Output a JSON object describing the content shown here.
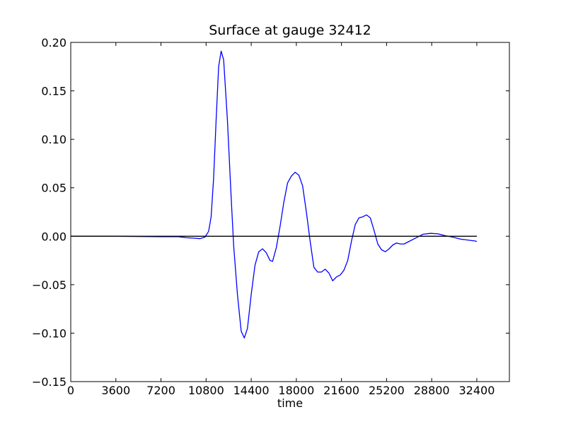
{
  "chart_data": {
    "type": "line",
    "title": "Surface at gauge 32412",
    "xlabel": "time",
    "ylabel": "",
    "xlim": [
      0,
      35000
    ],
    "ylim": [
      -0.15,
      0.2
    ],
    "xticks": [
      0,
      3600,
      7200,
      10800,
      14400,
      18000,
      21600,
      25200,
      28800,
      32400
    ],
    "yticks": [
      -0.15,
      -0.1,
      -0.05,
      0.0,
      0.05,
      0.1,
      0.15,
      0.2
    ],
    "ytick_labels": [
      "−0.15",
      "−0.10",
      "−0.05",
      "0.00",
      "0.05",
      "0.10",
      "0.15",
      "0.20"
    ],
    "grid": false,
    "series": [
      {
        "color": "#0000ff",
        "points": [
          [
            0,
            0.0
          ],
          [
            3600,
            0.0
          ],
          [
            7200,
            -0.0005
          ],
          [
            8600,
            -0.0005
          ],
          [
            9200,
            -0.0015
          ],
          [
            9800,
            -0.002
          ],
          [
            10300,
            -0.0025
          ],
          [
            10700,
            -0.001
          ],
          [
            11000,
            0.005
          ],
          [
            11200,
            0.02
          ],
          [
            11400,
            0.06
          ],
          [
            11600,
            0.12
          ],
          [
            11800,
            0.175
          ],
          [
            12000,
            0.191
          ],
          [
            12200,
            0.182
          ],
          [
            12500,
            0.12
          ],
          [
            12800,
            0.04
          ],
          [
            13000,
            -0.01
          ],
          [
            13300,
            -0.06
          ],
          [
            13600,
            -0.098
          ],
          [
            13850,
            -0.105
          ],
          [
            14100,
            -0.095
          ],
          [
            14400,
            -0.06
          ],
          [
            14700,
            -0.03
          ],
          [
            15000,
            -0.016
          ],
          [
            15300,
            -0.013
          ],
          [
            15600,
            -0.017
          ],
          [
            15900,
            -0.025
          ],
          [
            16100,
            -0.026
          ],
          [
            16400,
            -0.012
          ],
          [
            16700,
            0.01
          ],
          [
            17000,
            0.035
          ],
          [
            17300,
            0.055
          ],
          [
            17600,
            0.062
          ],
          [
            17900,
            0.066
          ],
          [
            18200,
            0.063
          ],
          [
            18500,
            0.052
          ],
          [
            18800,
            0.025
          ],
          [
            19100,
            -0.005
          ],
          [
            19400,
            -0.032
          ],
          [
            19700,
            -0.037
          ],
          [
            20000,
            -0.037
          ],
          [
            20300,
            -0.034
          ],
          [
            20600,
            -0.038
          ],
          [
            20900,
            -0.046
          ],
          [
            21200,
            -0.042
          ],
          [
            21500,
            -0.04
          ],
          [
            21800,
            -0.035
          ],
          [
            22100,
            -0.025
          ],
          [
            22400,
            -0.005
          ],
          [
            22700,
            0.012
          ],
          [
            23000,
            0.019
          ],
          [
            23300,
            0.02
          ],
          [
            23600,
            0.022
          ],
          [
            23900,
            0.019
          ],
          [
            24200,
            0.006
          ],
          [
            24500,
            -0.008
          ],
          [
            24800,
            -0.014
          ],
          [
            25100,
            -0.016
          ],
          [
            25400,
            -0.013
          ],
          [
            25700,
            -0.009
          ],
          [
            26000,
            -0.007
          ],
          [
            26300,
            -0.008
          ],
          [
            26600,
            -0.008
          ],
          [
            26900,
            -0.006
          ],
          [
            27500,
            -0.002
          ],
          [
            28100,
            0.002
          ],
          [
            28700,
            0.003
          ],
          [
            29300,
            0.0025
          ],
          [
            29900,
            0.0005
          ],
          [
            30500,
            -0.001
          ],
          [
            31100,
            -0.003
          ],
          [
            31700,
            -0.004
          ],
          [
            32300,
            -0.005
          ],
          [
            32400,
            -0.0055
          ]
        ]
      },
      {
        "color": "#000000",
        "points": [
          [
            0,
            0.0
          ],
          [
            32400,
            0.0
          ]
        ]
      }
    ]
  }
}
